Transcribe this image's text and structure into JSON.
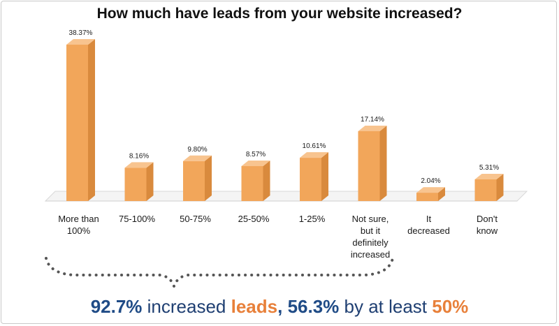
{
  "chart_data": {
    "type": "bar",
    "title": "How much have leads from your website increased?",
    "categories": [
      [
        "More than",
        "100%"
      ],
      [
        "75-100%"
      ],
      [
        "50-75%"
      ],
      [
        "25-50%"
      ],
      [
        "1-25%"
      ],
      [
        "Not sure,",
        "but it",
        "definitely",
        "increased"
      ],
      [
        "It",
        "decreased"
      ],
      [
        "Don't",
        "know"
      ]
    ],
    "values": [
      38.37,
      8.16,
      9.8,
      8.57,
      10.61,
      17.14,
      2.04,
      5.31
    ],
    "value_labels": [
      "38.37%",
      "8.16%",
      "9.80%",
      "8.57%",
      "10.61%",
      "17.14%",
      "2.04%",
      "5.31%"
    ],
    "bar_color": "#f2a65a",
    "bar_side_color": "#d98a3d",
    "bar_top_color": "#f8c48f",
    "floor_color": "#ffffff",
    "ylim": [
      0,
      40
    ],
    "grid": false,
    "legend": "none"
  },
  "summary": {
    "part1": "92.7%",
    "part2": " increased ",
    "part3": "leads",
    "part4": ", ",
    "part5": "56.3%",
    "part6": " by at least ",
    "part7": "50%"
  }
}
